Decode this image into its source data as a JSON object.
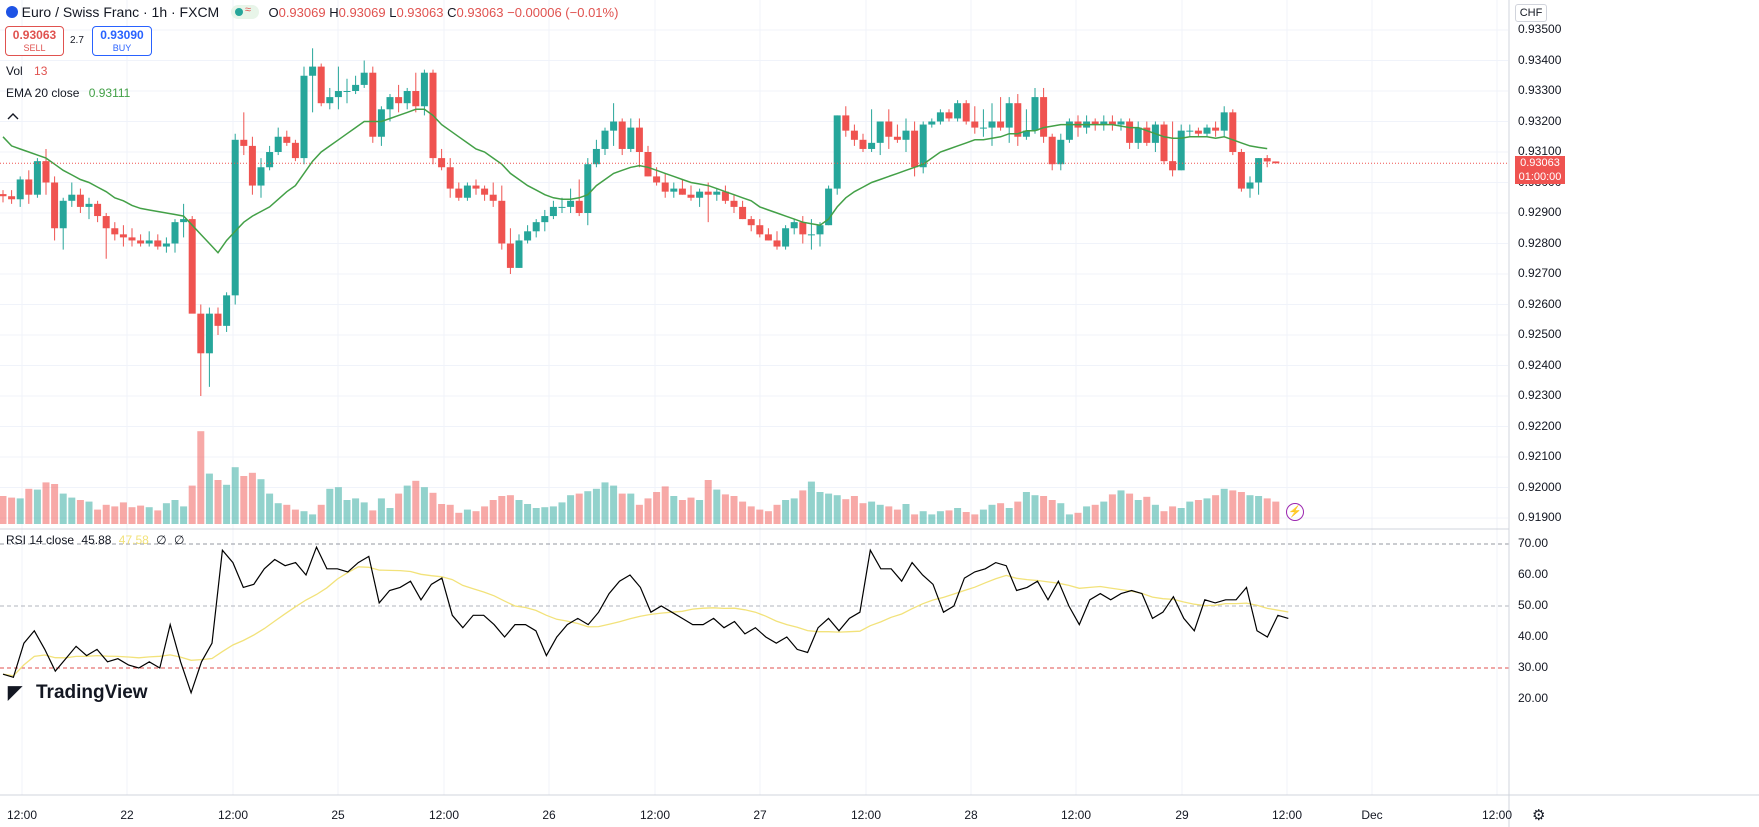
{
  "header": {
    "symbol": "Euro / Swiss Franc · 1h · FXCM",
    "ohlc": {
      "o_label": "O",
      "o": "0.93069",
      "h_label": "H",
      "h": "0.93069",
      "l_label": "L",
      "l": "0.93063",
      "c_label": "C",
      "c": "0.93063",
      "change": "−0.00006 (−0.01%)"
    },
    "sell": {
      "price": "0.93063",
      "label": "SELL"
    },
    "spread": "2.7",
    "buy": {
      "price": "0.93090",
      "label": "BUY"
    },
    "colors": {
      "down": "#ef5350",
      "up": "#26a69a"
    }
  },
  "currency_button": "CHF",
  "indicators": {
    "vol": {
      "label": "Vol",
      "value": "13"
    },
    "ema": {
      "label": "EMA 20 close",
      "value": "0.93111",
      "color": "#43a047"
    },
    "rsi": {
      "label": "RSI 14 close",
      "value": "45.88",
      "ma_value": "47.58",
      "extra1": "∅",
      "extra2": "∅",
      "color": "#000000",
      "ma_color": "#f2e27a"
    }
  },
  "price_axis": {
    "labels": [
      "0.93500",
      "0.93400",
      "0.93300",
      "0.93200",
      "0.93100",
      "0.93000",
      "0.92900",
      "0.92800",
      "0.92700",
      "0.92600",
      "0.92500",
      "0.92400",
      "0.92300",
      "0.92200",
      "0.92100",
      "0.92000",
      "0.91900"
    ],
    "last_price": "0.93063",
    "countdown": "01:00:00"
  },
  "rsi_axis": {
    "labels": [
      "70.00",
      "60.00",
      "50.00",
      "40.00",
      "30.00",
      "20.00"
    ]
  },
  "time_axis": [
    "12:00",
    "22",
    "12:00",
    "25",
    "12:00",
    "26",
    "12:00",
    "27",
    "12:00",
    "28",
    "12:00",
    "29",
    "12:00",
    "Dec",
    "12:00"
  ],
  "logo": "TradingView",
  "chart_data": {
    "type": "candlestick",
    "ylim": [
      0.9185,
      0.9355
    ],
    "candles_ohlc": [
      [
        0.92962,
        0.92975,
        0.92935,
        0.92955
      ],
      [
        0.92955,
        0.92975,
        0.9293,
        0.92945
      ],
      [
        0.92945,
        0.9302,
        0.9292,
        0.9301
      ],
      [
        0.9301,
        0.9304,
        0.9293,
        0.9296
      ],
      [
        0.9296,
        0.9308,
        0.9295,
        0.9307
      ],
      [
        0.9307,
        0.9311,
        0.9296,
        0.93
      ],
      [
        0.93,
        0.9302,
        0.9281,
        0.9285
      ],
      [
        0.9285,
        0.9295,
        0.9278,
        0.9294
      ],
      [
        0.9294,
        0.93,
        0.9292,
        0.9296
      ],
      [
        0.9296,
        0.9298,
        0.929,
        0.9292
      ],
      [
        0.9292,
        0.9295,
        0.9288,
        0.9293
      ],
      [
        0.9293,
        0.9294,
        0.9287,
        0.9289
      ],
      [
        0.9289,
        0.929,
        0.9275,
        0.9285
      ],
      [
        0.9285,
        0.9287,
        0.9281,
        0.9283
      ],
      [
        0.9283,
        0.9286,
        0.9279,
        0.9282
      ],
      [
        0.9282,
        0.9285,
        0.9279,
        0.9281
      ],
      [
        0.9281,
        0.9283,
        0.9279,
        0.928
      ],
      [
        0.928,
        0.9284,
        0.9279,
        0.9281
      ],
      [
        0.9281,
        0.9283,
        0.9278,
        0.9279
      ],
      [
        0.9279,
        0.9282,
        0.9277,
        0.928
      ],
      [
        0.928,
        0.9288,
        0.9277,
        0.9287
      ],
      [
        0.9287,
        0.9293,
        0.9282,
        0.9288
      ],
      [
        0.9288,
        0.9289,
        0.9258,
        0.9257
      ],
      [
        0.9257,
        0.926,
        0.923,
        0.9244
      ],
      [
        0.9244,
        0.9259,
        0.9233,
        0.9257
      ],
      [
        0.9257,
        0.9259,
        0.925,
        0.9253
      ],
      [
        0.9253,
        0.9264,
        0.9251,
        0.9263
      ],
      [
        0.9263,
        0.9316,
        0.926,
        0.9314
      ],
      [
        0.9314,
        0.9323,
        0.9309,
        0.9312
      ],
      [
        0.9312,
        0.9315,
        0.9296,
        0.9299
      ],
      [
        0.9299,
        0.9308,
        0.9295,
        0.9305
      ],
      [
        0.9305,
        0.9312,
        0.9304,
        0.931
      ],
      [
        0.931,
        0.9318,
        0.9309,
        0.9315
      ],
      [
        0.9315,
        0.9317,
        0.9312,
        0.9313
      ],
      [
        0.9313,
        0.9314,
        0.9307,
        0.9308
      ],
      [
        0.9308,
        0.9338,
        0.9306,
        0.9335
      ],
      [
        0.9335,
        0.9344,
        0.9323,
        0.9338
      ],
      [
        0.9338,
        0.9339,
        0.9325,
        0.9326
      ],
      [
        0.9326,
        0.9331,
        0.9324,
        0.9328
      ],
      [
        0.9328,
        0.9338,
        0.9324,
        0.933
      ],
      [
        0.933,
        0.9334,
        0.9326,
        0.933
      ],
      [
        0.933,
        0.9335,
        0.9329,
        0.9332
      ],
      [
        0.9332,
        0.934,
        0.9331,
        0.9336
      ],
      [
        0.9336,
        0.9338,
        0.9313,
        0.9315
      ],
      [
        0.9315,
        0.9325,
        0.9312,
        0.9324
      ],
      [
        0.9324,
        0.9329,
        0.932,
        0.9328
      ],
      [
        0.9328,
        0.9332,
        0.9323,
        0.9326
      ],
      [
        0.9326,
        0.9331,
        0.9324,
        0.933
      ],
      [
        0.933,
        0.9336,
        0.9323,
        0.9325
      ],
      [
        0.9325,
        0.9337,
        0.9322,
        0.9336
      ],
      [
        0.9336,
        0.9337,
        0.9306,
        0.9308
      ],
      [
        0.9308,
        0.9311,
        0.9304,
        0.9305
      ],
      [
        0.9305,
        0.9308,
        0.9295,
        0.9298
      ],
      [
        0.9298,
        0.93,
        0.9294,
        0.9295
      ],
      [
        0.9295,
        0.93,
        0.9294,
        0.9299
      ],
      [
        0.9299,
        0.9301,
        0.9296,
        0.9298
      ],
      [
        0.9298,
        0.9299,
        0.9294,
        0.9296
      ],
      [
        0.9296,
        0.93,
        0.9292,
        0.9294
      ],
      [
        0.9294,
        0.9299,
        0.9278,
        0.928
      ],
      [
        0.928,
        0.9285,
        0.927,
        0.9272
      ],
      [
        0.9272,
        0.9283,
        0.9272,
        0.9281
      ],
      [
        0.9281,
        0.9286,
        0.928,
        0.9284
      ],
      [
        0.9284,
        0.9288,
        0.9282,
        0.9287
      ],
      [
        0.9287,
        0.9291,
        0.9284,
        0.9289
      ],
      [
        0.9289,
        0.9294,
        0.9288,
        0.9292
      ],
      [
        0.9292,
        0.9295,
        0.929,
        0.9292
      ],
      [
        0.9292,
        0.9298,
        0.929,
        0.9294
      ],
      [
        0.9294,
        0.9301,
        0.9289,
        0.929
      ],
      [
        0.929,
        0.9308,
        0.9286,
        0.9306
      ],
      [
        0.9306,
        0.9314,
        0.9305,
        0.9311
      ],
      [
        0.9311,
        0.9318,
        0.9309,
        0.9317
      ],
      [
        0.9317,
        0.9326,
        0.9312,
        0.932
      ],
      [
        0.932,
        0.9321,
        0.9309,
        0.9311
      ],
      [
        0.9311,
        0.9321,
        0.931,
        0.9318
      ],
      [
        0.9318,
        0.9321,
        0.9305,
        0.931
      ],
      [
        0.931,
        0.9312,
        0.9302,
        0.9302
      ],
      [
        0.9302,
        0.9305,
        0.9299,
        0.93
      ],
      [
        0.93,
        0.9303,
        0.9295,
        0.9297
      ],
      [
        0.9297,
        0.93,
        0.9295,
        0.9298
      ],
      [
        0.9298,
        0.9301,
        0.9296,
        0.9296
      ],
      [
        0.9296,
        0.9299,
        0.9294,
        0.9295
      ],
      [
        0.9295,
        0.9298,
        0.9292,
        0.9297
      ],
      [
        0.9297,
        0.93,
        0.9287,
        0.9296
      ],
      [
        0.9296,
        0.9298,
        0.9294,
        0.9297
      ],
      [
        0.9297,
        0.9299,
        0.9293,
        0.9294
      ],
      [
        0.9294,
        0.9296,
        0.929,
        0.9292
      ],
      [
        0.9292,
        0.9294,
        0.9288,
        0.9288
      ],
      [
        0.9288,
        0.9289,
        0.9284,
        0.9286
      ],
      [
        0.9286,
        0.9288,
        0.9282,
        0.9283
      ],
      [
        0.9283,
        0.9285,
        0.9281,
        0.9281
      ],
      [
        0.9281,
        0.9284,
        0.9278,
        0.9279
      ],
      [
        0.9279,
        0.9286,
        0.9278,
        0.9285
      ],
      [
        0.9285,
        0.9288,
        0.9283,
        0.9287
      ],
      [
        0.9287,
        0.9289,
        0.928,
        0.9283
      ],
      [
        0.9283,
        0.9288,
        0.9278,
        0.9283
      ],
      [
        0.9283,
        0.9287,
        0.9279,
        0.9286
      ],
      [
        0.9286,
        0.9299,
        0.9286,
        0.9298
      ],
      [
        0.9298,
        0.9322,
        0.9296,
        0.9322
      ],
      [
        0.9322,
        0.9325,
        0.9315,
        0.9317
      ],
      [
        0.9317,
        0.9319,
        0.9312,
        0.9314
      ],
      [
        0.9314,
        0.9316,
        0.931,
        0.9311
      ],
      [
        0.9311,
        0.9324,
        0.931,
        0.9313
      ],
      [
        0.9313,
        0.932,
        0.9309,
        0.932
      ],
      [
        0.932,
        0.9324,
        0.9311,
        0.9315
      ],
      [
        0.9315,
        0.9319,
        0.9313,
        0.9314
      ],
      [
        0.9314,
        0.9321,
        0.931,
        0.9317
      ],
      [
        0.9317,
        0.932,
        0.9302,
        0.9305
      ],
      [
        0.9305,
        0.932,
        0.9303,
        0.9319
      ],
      [
        0.9319,
        0.9321,
        0.9318,
        0.932
      ],
      [
        0.932,
        0.9324,
        0.9319,
        0.9323
      ],
      [
        0.9323,
        0.9324,
        0.932,
        0.9321
      ],
      [
        0.9321,
        0.9327,
        0.932,
        0.9326
      ],
      [
        0.9326,
        0.9327,
        0.9319,
        0.932
      ],
      [
        0.932,
        0.9325,
        0.9316,
        0.9318
      ],
      [
        0.9318,
        0.9324,
        0.9315,
        0.9318
      ],
      [
        0.9318,
        0.9326,
        0.9312,
        0.932
      ],
      [
        0.932,
        0.9328,
        0.9317,
        0.9318
      ],
      [
        0.9318,
        0.9328,
        0.9313,
        0.9326
      ],
      [
        0.9326,
        0.9329,
        0.9312,
        0.9315
      ],
      [
        0.9315,
        0.9324,
        0.9314,
        0.9317
      ],
      [
        0.9317,
        0.9331,
        0.9316,
        0.9328
      ],
      [
        0.9328,
        0.9331,
        0.9313,
        0.9315
      ],
      [
        0.9315,
        0.9316,
        0.9304,
        0.9306
      ],
      [
        0.9306,
        0.9316,
        0.9304,
        0.9314
      ],
      [
        0.9314,
        0.9321,
        0.9313,
        0.932
      ],
      [
        0.932,
        0.9322,
        0.9315,
        0.9318
      ],
      [
        0.9318,
        0.9322,
        0.9316,
        0.932
      ],
      [
        0.932,
        0.9321,
        0.9317,
        0.9319
      ],
      [
        0.9319,
        0.9322,
        0.9317,
        0.932
      ],
      [
        0.932,
        0.9322,
        0.9317,
        0.9319
      ],
      [
        0.9319,
        0.9321,
        0.9317,
        0.932
      ],
      [
        0.932,
        0.9321,
        0.9311,
        0.9313
      ],
      [
        0.9313,
        0.932,
        0.9311,
        0.9318
      ],
      [
        0.9318,
        0.932,
        0.9312,
        0.9313
      ],
      [
        0.9313,
        0.932,
        0.931,
        0.9319
      ],
      [
        0.9319,
        0.932,
        0.9306,
        0.9307
      ],
      [
        0.9307,
        0.932,
        0.9302,
        0.9304
      ],
      [
        0.9304,
        0.9319,
        0.9304,
        0.9317
      ],
      [
        0.9317,
        0.9319,
        0.9315,
        0.9317
      ],
      [
        0.9317,
        0.9318,
        0.9315,
        0.9316
      ],
      [
        0.9316,
        0.9319,
        0.9315,
        0.9318
      ],
      [
        0.9318,
        0.932,
        0.9315,
        0.9317
      ],
      [
        0.9317,
        0.9325,
        0.9315,
        0.9323
      ],
      [
        0.9323,
        0.9324,
        0.9309,
        0.931
      ],
      [
        0.931,
        0.9311,
        0.9297,
        0.9298
      ],
      [
        0.9298,
        0.9302,
        0.9295,
        0.93
      ],
      [
        0.93,
        0.9308,
        0.9296,
        0.9308
      ],
      [
        0.9308,
        0.9309,
        0.9305,
        0.93069
      ],
      [
        0.93069,
        0.93069,
        0.93063,
        0.93063
      ]
    ],
    "ema20": [
      0.9315,
      0.9312,
      0.9311,
      0.931,
      0.9309,
      0.9308,
      0.9306,
      0.9304,
      0.93025,
      0.9301,
      0.93,
      0.92985,
      0.9297,
      0.9295,
      0.9294,
      0.92925,
      0.92915,
      0.9291,
      0.92905,
      0.929,
      0.92895,
      0.9289,
      0.9286,
      0.9283,
      0.928,
      0.9277,
      0.9281,
      0.9284,
      0.9287,
      0.9289,
      0.92905,
      0.9292,
      0.92945,
      0.9297,
      0.9299,
      0.9303,
      0.9307,
      0.931,
      0.9312,
      0.9314,
      0.9316,
      0.9318,
      0.932,
      0.932,
      0.932,
      0.9321,
      0.9322,
      0.9323,
      0.9324,
      0.9324,
      0.9322,
      0.9319,
      0.9317,
      0.9315,
      0.9313,
      0.9311,
      0.931,
      0.9308,
      0.9306,
      0.9303,
      0.9301,
      0.9299,
      0.92975,
      0.9296,
      0.9295,
      0.92945,
      0.92945,
      0.9295,
      0.9296,
      0.9299,
      0.9301,
      0.9303,
      0.9304,
      0.9305,
      0.93055,
      0.9305,
      0.9304,
      0.9303,
      0.9302,
      0.9301,
      0.93,
      0.92995,
      0.9299,
      0.9298,
      0.9297,
      0.9296,
      0.9295,
      0.9294,
      0.9292,
      0.9291,
      0.929,
      0.9289,
      0.9288,
      0.9287,
      0.92865,
      0.9286,
      0.9288,
      0.9292,
      0.9295,
      0.9297,
      0.92985,
      0.93,
      0.9301,
      0.9302,
      0.9303,
      0.9304,
      0.9305,
      0.9306,
      0.9308,
      0.931,
      0.9311,
      0.9312,
      0.9313,
      0.9314,
      0.9314,
      0.93145,
      0.9315,
      0.9316,
      0.9316,
      0.9317,
      0.9317,
      0.9318,
      0.93185,
      0.9319,
      0.9319,
      0.9319,
      0.9319,
      0.9319,
      0.9319,
      0.9319,
      0.93185,
      0.9318,
      0.9318,
      0.9317,
      0.9316,
      0.9315,
      0.93145,
      0.93145,
      0.9315,
      0.9315,
      0.9315,
      0.93145,
      0.9315,
      0.9314,
      0.9313,
      0.9312,
      0.93115,
      0.93111
    ],
    "volume": [
      35,
      33,
      32,
      44,
      43,
      52,
      50,
      38,
      33,
      30,
      28,
      18,
      24,
      22,
      27,
      21,
      23,
      21,
      17,
      26,
      30,
      22,
      48,
      116,
      63,
      55,
      49,
      71,
      60,
      64,
      56,
      38,
      26,
      24,
      18,
      16,
      12,
      24,
      44,
      46,
      30,
      32,
      27,
      17,
      32,
      20,
      38,
      48,
      54,
      46,
      39,
      25,
      24,
      14,
      18,
      16,
      22,
      30,
      35,
      36,
      30,
      25,
      20,
      21,
      22,
      27,
      36,
      38,
      41,
      44,
      52,
      48,
      38,
      38,
      24,
      32,
      40,
      47,
      35,
      30,
      33,
      30,
      55,
      43,
      37,
      35,
      28,
      22,
      18,
      16,
      24,
      30,
      32,
      42,
      53,
      40,
      38,
      36,
      31,
      35,
      26,
      28,
      24,
      22,
      18,
      25,
      12,
      16,
      12,
      16,
      17,
      20,
      15,
      12,
      18,
      24,
      26,
      20,
      28,
      40,
      36,
      35,
      30,
      26,
      12,
      14,
      22,
      24,
      28,
      37,
      42,
      38,
      30,
      34,
      24,
      16,
      22,
      20,
      28,
      30,
      32,
      36,
      44,
      42,
      40,
      36,
      35,
      32,
      28,
      13
    ],
    "rsi": [
      28,
      27,
      38,
      42,
      36,
      29,
      33,
      37,
      34,
      36,
      32,
      33,
      31,
      30,
      32,
      30,
      44,
      32,
      22,
      32,
      38,
      68,
      64,
      56,
      57,
      62,
      65,
      63,
      64,
      60,
      69,
      62,
      62,
      61,
      64,
      66,
      51,
      55,
      56,
      58,
      52,
      57,
      59,
      47,
      43,
      47,
      47,
      44,
      40,
      44,
      44,
      42,
      34,
      40,
      44,
      46,
      44,
      48,
      54,
      58,
      60,
      56,
      48,
      50,
      48,
      46,
      44,
      44,
      46,
      43,
      45,
      41,
      43,
      40,
      38,
      40,
      36,
      35,
      43,
      46,
      42,
      46,
      48,
      68,
      62,
      62,
      58,
      64,
      60,
      57,
      48,
      50,
      59,
      61,
      62,
      64,
      63,
      55,
      56,
      58,
      52,
      58,
      50,
      44,
      52,
      54,
      52,
      54,
      55,
      54,
      46,
      48,
      53,
      46,
      42,
      52,
      51,
      52,
      52,
      56,
      42,
      40,
      47,
      46
    ]
  }
}
